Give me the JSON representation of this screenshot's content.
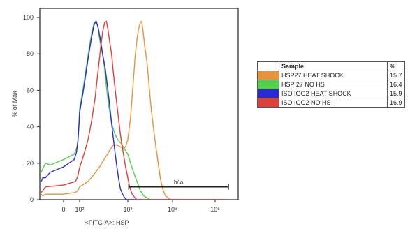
{
  "chart_data": {
    "type": "line",
    "xlabel": "<FITC-A>: HSP",
    "ylabel": "% of Max",
    "xscale": "biexponential",
    "x_ticks": [
      {
        "value": 0,
        "label": "0"
      },
      {
        "value": 100,
        "label": "10²"
      },
      {
        "value": 1000,
        "label": "10³"
      },
      {
        "value": 10000,
        "label": "10⁴"
      },
      {
        "value": 100000,
        "label": "10⁵"
      }
    ],
    "y_ticks": [
      0,
      20,
      40,
      60,
      80,
      100
    ],
    "ylim": [
      0,
      105
    ],
    "grid": false,
    "gate": {
      "label": "b/.a",
      "x_start": 1050,
      "x_end": 150000,
      "y": 7
    },
    "legend_headers": {
      "swatch": "",
      "sample": "Sample",
      "percent": "%"
    },
    "series": [
      {
        "name": "HSP27 HEAT SHOCK",
        "percent": "15.7",
        "color": "#e8923a",
        "points": [
          [
            -300,
            3
          ],
          [
            -200,
            2
          ],
          [
            -100,
            3
          ],
          [
            0,
            3
          ],
          [
            30,
            4
          ],
          [
            60,
            5
          ],
          [
            100,
            7
          ],
          [
            150,
            10
          ],
          [
            200,
            14
          ],
          [
            260,
            18
          ],
          [
            320,
            22
          ],
          [
            380,
            25
          ],
          [
            440,
            28
          ],
          [
            500,
            30
          ],
          [
            600,
            30
          ],
          [
            700,
            29
          ],
          [
            800,
            28
          ],
          [
            900,
            29
          ],
          [
            1000,
            33
          ],
          [
            1150,
            45
          ],
          [
            1300,
            62
          ],
          [
            1450,
            78
          ],
          [
            1600,
            88
          ],
          [
            1750,
            94
          ],
          [
            1900,
            97
          ],
          [
            2050,
            98
          ],
          [
            2200,
            92
          ],
          [
            2400,
            84
          ],
          [
            2700,
            75
          ],
          [
            3000,
            62
          ],
          [
            3400,
            48
          ],
          [
            3800,
            38
          ],
          [
            4300,
            28
          ],
          [
            4900,
            18
          ],
          [
            5500,
            10
          ],
          [
            6200,
            5
          ],
          [
            7000,
            2
          ],
          [
            8000,
            1
          ],
          [
            9000,
            0
          ],
          [
            12000,
            0
          ],
          [
            150000,
            0
          ]
        ]
      },
      {
        "name": "HSP 27 NO HS",
        "percent": "16.4",
        "color": "#4fd14a",
        "points": [
          [
            -300,
            15
          ],
          [
            -200,
            17
          ],
          [
            -100,
            20
          ],
          [
            -30,
            19
          ],
          [
            0,
            22
          ],
          [
            20,
            25
          ],
          [
            40,
            28
          ],
          [
            60,
            32
          ],
          [
            80,
            40
          ],
          [
            100,
            50
          ],
          [
            120,
            62
          ],
          [
            140,
            74
          ],
          [
            160,
            84
          ],
          [
            180,
            92
          ],
          [
            200,
            97
          ],
          [
            220,
            98
          ],
          [
            240,
            95
          ],
          [
            260,
            88
          ],
          [
            290,
            82
          ],
          [
            320,
            75
          ],
          [
            360,
            62
          ],
          [
            400,
            52
          ],
          [
            460,
            42
          ],
          [
            540,
            36
          ],
          [
            620,
            33
          ],
          [
            720,
            31
          ],
          [
            850,
            28
          ],
          [
            1000,
            25
          ],
          [
            1150,
            20
          ],
          [
            1350,
            15
          ],
          [
            1600,
            10
          ],
          [
            1900,
            5
          ],
          [
            2300,
            2
          ],
          [
            2700,
            1
          ],
          [
            3200,
            0
          ],
          [
            150000,
            0
          ]
        ]
      },
      {
        "name": "ISO IGG2 HEAT SHOCK",
        "percent": "15.9",
        "color": "#2b2bd6",
        "points": [
          [
            -300,
            10
          ],
          [
            -200,
            12
          ],
          [
            -100,
            12
          ],
          [
            -30,
            15
          ],
          [
            0,
            18
          ],
          [
            20,
            22
          ],
          [
            40,
            26
          ],
          [
            60,
            32
          ],
          [
            80,
            40
          ],
          [
            100,
            48
          ],
          [
            120,
            60
          ],
          [
            140,
            72
          ],
          [
            160,
            82
          ],
          [
            180,
            90
          ],
          [
            200,
            96
          ],
          [
            220,
            98
          ],
          [
            240,
            95
          ],
          [
            270,
            88
          ],
          [
            300,
            80
          ],
          [
            340,
            72
          ],
          [
            380,
            62
          ],
          [
            420,
            52
          ],
          [
            470,
            40
          ],
          [
            520,
            30
          ],
          [
            580,
            20
          ],
          [
            640,
            12
          ],
          [
            700,
            6
          ],
          [
            780,
            3
          ],
          [
            860,
            1
          ],
          [
            950,
            0
          ],
          [
            150000,
            0
          ]
        ]
      },
      {
        "name": "ISO IGG2 NO HS",
        "percent": "16.9",
        "color": "#e0403a",
        "points": [
          [
            -300,
            4
          ],
          [
            -200,
            5
          ],
          [
            -100,
            7
          ],
          [
            0,
            8
          ],
          [
            30,
            10
          ],
          [
            60,
            13
          ],
          [
            90,
            17
          ],
          [
            120,
            24
          ],
          [
            150,
            33
          ],
          [
            180,
            44
          ],
          [
            210,
            56
          ],
          [
            240,
            70
          ],
          [
            270,
            82
          ],
          [
            300,
            92
          ],
          [
            330,
            97
          ],
          [
            360,
            98
          ],
          [
            390,
            93
          ],
          [
            420,
            87
          ],
          [
            460,
            80
          ],
          [
            500,
            70
          ],
          [
            550,
            60
          ],
          [
            620,
            48
          ],
          [
            700,
            36
          ],
          [
            800,
            26
          ],
          [
            900,
            18
          ],
          [
            1000,
            12
          ],
          [
            1100,
            7
          ],
          [
            1250,
            3
          ],
          [
            1450,
            1
          ],
          [
            1600,
            0
          ],
          [
            150000,
            0
          ]
        ]
      }
    ]
  }
}
